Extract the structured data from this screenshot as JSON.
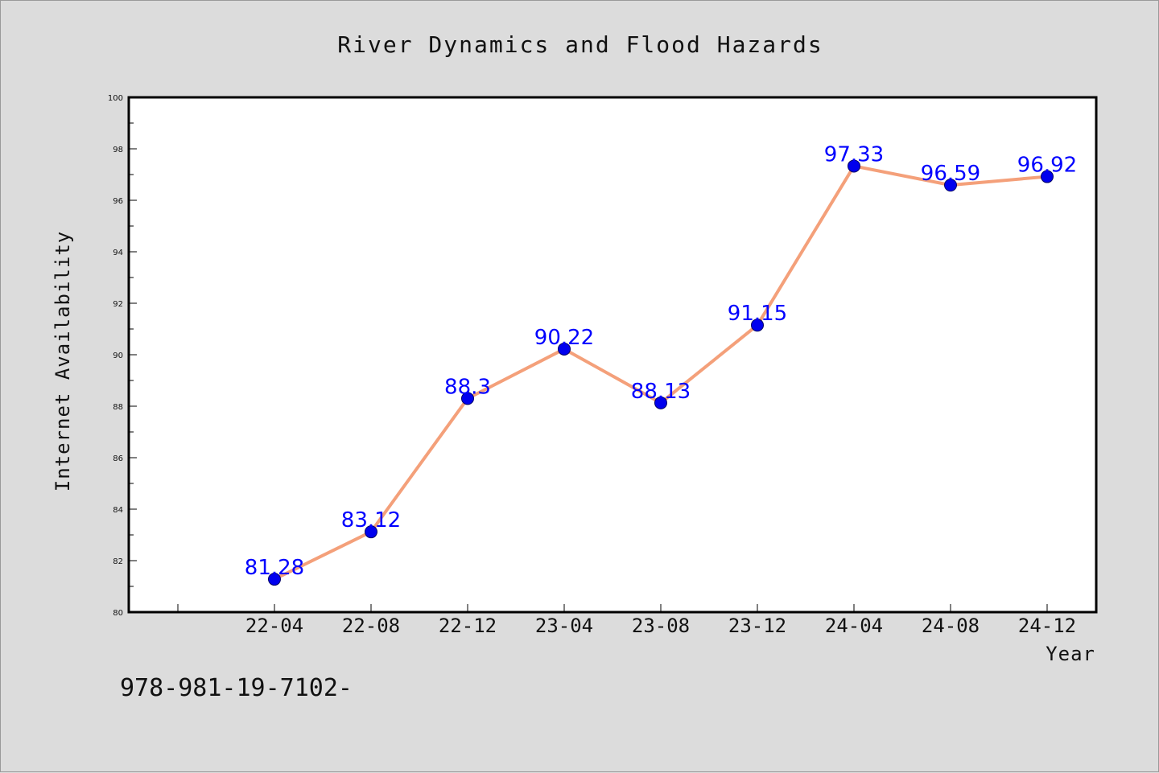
{
  "chart_data": {
    "type": "line",
    "title": "River Dynamics and Flood Hazards",
    "xlabel": "Year",
    "ylabel": "Internet Availability",
    "categories": [
      "22-04",
      "22-08",
      "22-12",
      "23-04",
      "23-08",
      "23-12",
      "24-04",
      "24-08",
      "24-12"
    ],
    "series": [
      {
        "values": [
          81.28,
          83.12,
          88.3,
          90.22,
          88.13,
          91.15,
          97.33,
          96.59,
          96.92
        ]
      }
    ],
    "data_labels": [
      "81.28",
      "83.12",
      "88.3",
      "90.22",
      "88.13",
      "91.15",
      "97.33",
      "96.59",
      "96.92"
    ],
    "ylim": [
      80,
      100
    ],
    "yticks": [
      80,
      82,
      84,
      86,
      88,
      90,
      92,
      94,
      96,
      98,
      100
    ],
    "grid": false,
    "colors": {
      "line": "#f4a07a",
      "marker": "#0000ee",
      "marker_edge": "#000066",
      "data_label": "#0000ff",
      "background": "#dcdcdc",
      "plot_area": "#ffffff"
    }
  },
  "footer_text": "978-981-19-7102-"
}
